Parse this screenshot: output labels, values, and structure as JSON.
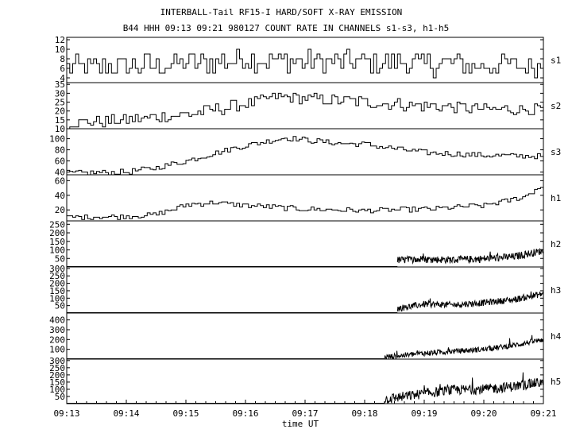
{
  "title": "INTERBALL-Tail RF15-I HARD/SOFT X-RAY EMISSION",
  "subtitle": "B44 HHH 09:13 09:21 980127  COUNT RATE IN CHANNELS s1-s3, h1-h5",
  "chart_data": {
    "type": "line",
    "title": "INTERBALL-Tail RF15-I HARD/SOFT X-RAY EMISSION",
    "subtitle": "B44 HHH 09:13 09:21 980127  COUNT RATE IN CHANNELS s1-s3, h1-h5",
    "xlabel": "time UT",
    "x_ticks": [
      "09:13",
      "09:14",
      "09:15",
      "09:16",
      "09:17",
      "09:18",
      "09:19",
      "09:20",
      "09:21"
    ],
    "xlim": [
      "09:13",
      "09:21"
    ],
    "grid": false,
    "panels": [
      {
        "name": "s1",
        "ylim": [
          3,
          12.5
        ],
        "y_ticks": [
          4,
          6,
          8,
          10,
          12
        ],
        "start": "09:13",
        "step_seconds": 3,
        "resolution": "low",
        "anchors": [
          [
            "09:13",
            6
          ],
          [
            "09:15",
            7
          ],
          [
            "09:16",
            8
          ],
          [
            "09:17",
            7.5
          ],
          [
            "09:19",
            7
          ],
          [
            "09:20",
            6.5
          ],
          [
            "09:21",
            6.5
          ]
        ],
        "noise": 2.5
      },
      {
        "name": "s2",
        "ylim": [
          10,
          36
        ],
        "y_ticks": [
          10,
          15,
          20,
          25,
          30,
          35
        ],
        "start": "09:13",
        "step_seconds": 3,
        "resolution": "low",
        "anchors": [
          [
            "09:13",
            13
          ],
          [
            "09:14",
            15
          ],
          [
            "09:15",
            18
          ],
          [
            "09:16",
            24
          ],
          [
            "09:16:30",
            28
          ],
          [
            "09:17",
            27
          ],
          [
            "09:18",
            25
          ],
          [
            "09:19",
            23
          ],
          [
            "09:20",
            21
          ],
          [
            "09:21",
            21
          ]
        ],
        "noise": 3.5
      },
      {
        "name": "s3",
        "ylim": [
          35,
          118
        ],
        "y_ticks": [
          40,
          60,
          80,
          100
        ],
        "start": "09:13",
        "step_seconds": 3,
        "resolution": "low",
        "anchors": [
          [
            "09:13",
            38
          ],
          [
            "09:14",
            40
          ],
          [
            "09:14:30",
            48
          ],
          [
            "09:15",
            60
          ],
          [
            "09:15:30",
            75
          ],
          [
            "09:16",
            88
          ],
          [
            "09:16:40",
            102
          ],
          [
            "09:17",
            98
          ],
          [
            "09:17:30",
            92
          ],
          [
            "09:18",
            90
          ],
          [
            "09:18:30",
            82
          ],
          [
            "09:19",
            75
          ],
          [
            "09:20",
            70
          ],
          [
            "09:21",
            68
          ]
        ],
        "noise": 5
      },
      {
        "name": "h1",
        "ylim": [
          5,
          68
        ],
        "y_ticks": [
          20,
          40,
          60
        ],
        "start": "09:13",
        "step_seconds": 3,
        "resolution": "low",
        "anchors": [
          [
            "09:13",
            10
          ],
          [
            "09:14",
            11
          ],
          [
            "09:14:30",
            14
          ],
          [
            "09:15",
            27
          ],
          [
            "09:15:30",
            30
          ],
          [
            "09:16",
            26
          ],
          [
            "09:17",
            21
          ],
          [
            "09:18",
            19
          ],
          [
            "09:19",
            21
          ],
          [
            "09:20",
            26
          ],
          [
            "09:20:40",
            38
          ],
          [
            "09:21",
            55
          ]
        ],
        "noise": 3.5
      },
      {
        "name": "h2",
        "ylim": [
          0,
          270
        ],
        "y_ticks": [
          50,
          100,
          150,
          200,
          250
        ],
        "start": "09:18:33",
        "step_seconds": 0.5,
        "resolution": "high",
        "anchors": [
          [
            "09:18:33",
            40
          ],
          [
            "09:19",
            45
          ],
          [
            "09:19:30",
            42
          ],
          [
            "09:20",
            48
          ],
          [
            "09:20:30",
            60
          ],
          [
            "09:21",
            95
          ]
        ],
        "noise": 22
      },
      {
        "name": "h3",
        "ylim": [
          0,
          310
        ],
        "y_ticks": [
          50,
          100,
          150,
          200,
          250,
          300
        ],
        "start": "09:18:33",
        "step_seconds": 0.5,
        "resolution": "high",
        "anchors": [
          [
            "09:18:33",
            30
          ],
          [
            "09:19",
            60
          ],
          [
            "09:19:30",
            55
          ],
          [
            "09:20",
            70
          ],
          [
            "09:20:30",
            90
          ],
          [
            "09:21",
            130
          ]
        ],
        "noise": 22
      },
      {
        "name": "h4",
        "ylim": [
          0,
          470
        ],
        "y_ticks": [
          100,
          200,
          300,
          400
        ],
        "start": "09:18:20",
        "step_seconds": 0.5,
        "resolution": "high",
        "anchors": [
          [
            "09:18:20",
            20
          ],
          [
            "09:19",
            60
          ],
          [
            "09:19:30",
            80
          ],
          [
            "09:20",
            100
          ],
          [
            "09:20:30",
            140
          ],
          [
            "09:21",
            200
          ]
        ],
        "noise": 28
      },
      {
        "name": "h5",
        "ylim": [
          0,
          310
        ],
        "y_ticks": [
          50,
          100,
          150,
          200,
          250,
          300
        ],
        "start": "09:18:20",
        "step_seconds": 0.5,
        "resolution": "high",
        "anchors": [
          [
            "09:18:20",
            30
          ],
          [
            "09:19",
            70
          ],
          [
            "09:19:30",
            95
          ],
          [
            "09:20",
            100
          ],
          [
            "09:20:30",
            120
          ],
          [
            "09:21",
            150
          ]
        ],
        "noise": 35
      }
    ]
  }
}
